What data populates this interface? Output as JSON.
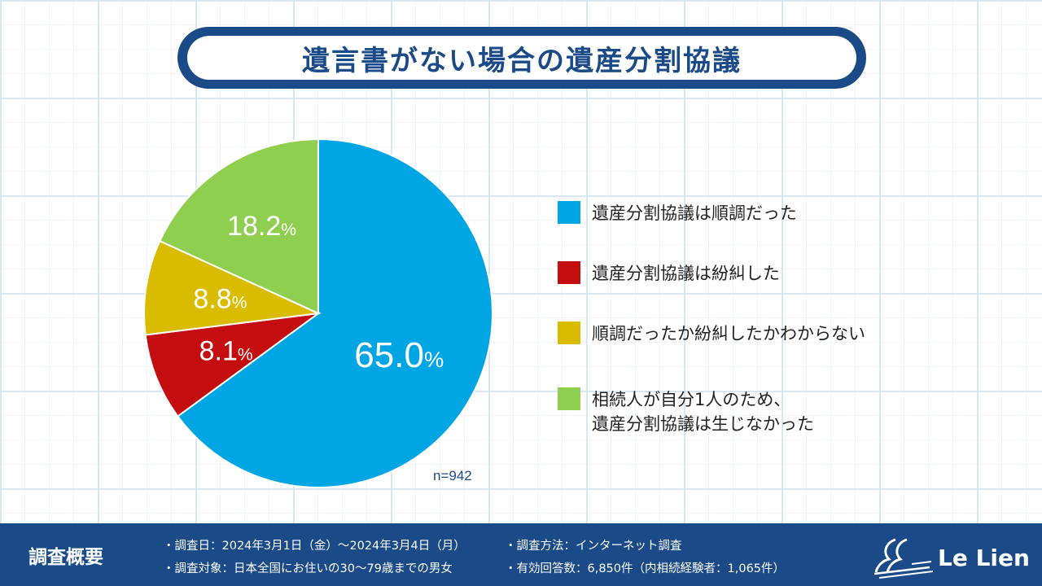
{
  "title": "遺言書がない場合の遺産分割協議",
  "chart_data": {
    "type": "pie",
    "start_angle_deg": 0,
    "direction": "clockwise",
    "slices": [
      {
        "label": "遺産分割協議は順調だった",
        "value": 65.0,
        "display": "65.0",
        "color": "#00a6e4"
      },
      {
        "label": "遺産分割協議は紛糾した",
        "value": 8.1,
        "display": "8.1",
        "color": "#c30d0f"
      },
      {
        "label": "順調だったか紛糾したかわからない",
        "value": 8.8,
        "display": "8.8",
        "color": "#d9bb00"
      },
      {
        "label": "相続人が自分1人のため、\n遺産分割協議は生じなかった",
        "value": 18.2,
        "display": "18.2",
        "color": "#8fcf4f"
      }
    ],
    "unit": "%",
    "n_label": "n=942",
    "legend_position": "right"
  },
  "footer": {
    "heading": "調査概要",
    "lines": [
      "・調査日：2024年3月1日（金）～2024年3月4日（月）",
      "・調査方法：インターネット調査",
      "・調査対象：日本全国にお住いの30～79歳までの男女",
      "・有効回答数：6,850件（内相続経験者：1,065件）"
    ],
    "logo_text": "Le Lien"
  },
  "colors": {
    "navy": "#1a4a87",
    "grid": "#d9e7f3"
  }
}
